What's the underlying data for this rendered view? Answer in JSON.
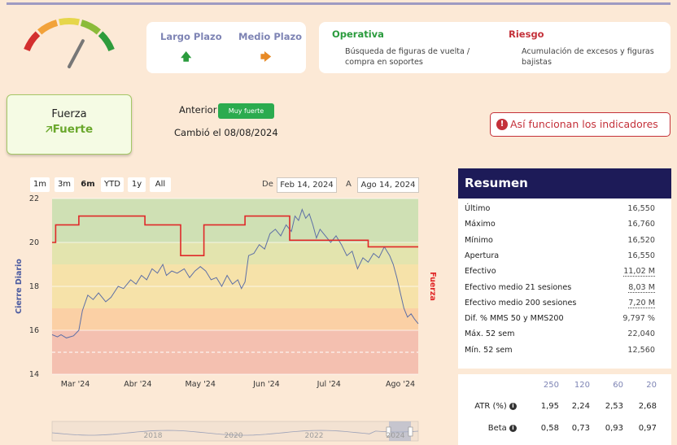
{
  "gauge": {
    "level": 0.7,
    "colors": [
      "#d32f2f",
      "#f2a23a",
      "#e6d64a",
      "#8bbb3a",
      "#2e9b3c"
    ]
  },
  "plazo": {
    "largo": {
      "label": "Largo Plazo",
      "arrow": "🡅",
      "color": "#2a9b3d"
    },
    "medio": {
      "label": "Medio Plazo",
      "arrow": "🡆",
      "color": "#e78a26"
    }
  },
  "operativa": {
    "title": "Operativa",
    "text_1": "Búsqueda de figuras de vuelta /",
    "text_2": "compra en soportes",
    "color": "#2a9b3d"
  },
  "riesgo": {
    "title": "Riesgo",
    "text_1": "Acumulación de excesos y figuras",
    "text_2": "bajistas",
    "color": "#c4313a"
  },
  "fuerza": {
    "title": "Fuerza",
    "value": "Fuerte",
    "arrow": "🡥"
  },
  "anterior": {
    "label": "Anterior",
    "badge": "Muy fuerte"
  },
  "cambio": "Cambió el 08/08/2024",
  "asi_button": {
    "label": "Así funcionan los indicadores",
    "icon": "!"
  },
  "ranges": [
    "1m",
    "3m",
    "6m",
    "YTD",
    "1y",
    "All"
  ],
  "active_range": "6m",
  "dates": {
    "de_label": "De",
    "de_value": "Feb 14, 2024",
    "a_label": "A",
    "a_value": "Ago 14, 2024"
  },
  "chart_data": {
    "type": "line",
    "ylabel": "Cierre Diario",
    "y2label": "Fuerza",
    "ylim": [
      14,
      22
    ],
    "yticks": [
      "22",
      "20",
      "18",
      "16",
      "14"
    ],
    "xticks": [
      "Mar '24",
      "Abr '24",
      "May '24",
      "Jun '24",
      "Jul '24",
      "Ago '24"
    ],
    "bands": [
      {
        "from": 20,
        "to": 22,
        "color": "#cfe0b4"
      },
      {
        "from": 19,
        "to": 20,
        "color": "#e3e4ae"
      },
      {
        "from": 17,
        "to": 19,
        "color": "#f6e2a9"
      },
      {
        "from": 16,
        "to": 17,
        "color": "#fbd0a5"
      },
      {
        "from": 14,
        "to": 16,
        "color": "#f4c0b0"
      }
    ],
    "series": [
      {
        "values": [
          [
            0,
            15.8
          ],
          [
            3,
            15.7
          ],
          [
            5,
            15.8
          ],
          [
            8,
            15.65
          ],
          [
            12,
            15.75
          ],
          [
            15,
            16.0
          ],
          [
            17,
            16.9
          ],
          [
            20,
            17.6
          ],
          [
            23,
            17.4
          ],
          [
            26,
            17.7
          ],
          [
            30,
            17.3
          ],
          [
            33,
            17.5
          ],
          [
            37,
            18.0
          ],
          [
            40,
            17.9
          ],
          [
            44,
            18.3
          ],
          [
            47,
            18.1
          ],
          [
            50,
            18.5
          ],
          [
            53,
            18.3
          ],
          [
            56,
            18.8
          ],
          [
            59,
            18.6
          ],
          [
            62,
            19.0
          ],
          [
            64,
            18.5
          ],
          [
            67,
            18.7
          ],
          [
            70,
            18.6
          ],
          [
            74,
            18.8
          ],
          [
            77,
            18.4
          ],
          [
            80,
            18.7
          ],
          [
            83,
            18.9
          ],
          [
            86,
            18.7
          ],
          [
            89,
            18.3
          ],
          [
            92,
            18.4
          ],
          [
            95,
            18.0
          ],
          [
            98,
            18.5
          ],
          [
            101,
            18.1
          ],
          [
            104,
            18.3
          ],
          [
            106,
            17.9
          ],
          [
            108,
            18.2
          ],
          [
            110,
            19.4
          ],
          [
            113,
            19.5
          ],
          [
            116,
            19.9
          ],
          [
            119,
            19.7
          ],
          [
            122,
            20.4
          ],
          [
            125,
            20.6
          ],
          [
            128,
            20.3
          ],
          [
            131,
            20.8
          ],
          [
            134,
            20.5
          ],
          [
            136,
            21.2
          ],
          [
            138,
            21.0
          ],
          [
            140,
            21.5
          ],
          [
            142,
            21.1
          ],
          [
            144,
            21.3
          ],
          [
            146,
            20.8
          ],
          [
            148,
            20.2
          ],
          [
            150,
            20.6
          ],
          [
            153,
            20.3
          ],
          [
            156,
            20.0
          ],
          [
            159,
            20.3
          ],
          [
            162,
            19.9
          ],
          [
            165,
            19.4
          ],
          [
            168,
            19.6
          ],
          [
            171,
            18.8
          ],
          [
            174,
            19.3
          ],
          [
            177,
            19.1
          ],
          [
            180,
            19.5
          ],
          [
            183,
            19.3
          ],
          [
            186,
            19.8
          ],
          [
            189,
            19.4
          ],
          [
            191,
            19.0
          ],
          [
            193,
            18.4
          ],
          [
            195,
            17.7
          ],
          [
            197,
            17.0
          ],
          [
            199,
            16.6
          ],
          [
            201,
            16.75
          ],
          [
            203,
            16.5
          ],
          [
            205,
            16.3
          ]
        ]
      },
      {
        "values": [
          [
            0,
            20.0
          ],
          [
            2,
            20.0
          ],
          [
            2,
            20.8
          ],
          [
            15,
            20.8
          ],
          [
            15,
            21.2
          ],
          [
            52,
            21.2
          ],
          [
            52,
            20.8
          ],
          [
            72,
            20.8
          ],
          [
            72,
            19.4
          ],
          [
            85,
            19.4
          ],
          [
            85,
            20.8
          ],
          [
            108,
            20.8
          ],
          [
            108,
            21.2
          ],
          [
            133,
            21.2
          ],
          [
            133,
            20.1
          ],
          [
            177,
            20.1
          ],
          [
            177,
            19.8
          ],
          [
            205,
            19.8
          ]
        ],
        "color": "#e02828"
      }
    ],
    "navigator_labels": [
      "2018",
      "2020",
      "2022",
      "2024"
    ]
  },
  "resumen": {
    "title": "Resumen",
    "rows": [
      {
        "label": "Último",
        "value": "16,550"
      },
      {
        "label": "Máximo",
        "value": "16,760"
      },
      {
        "label": "Mínimo",
        "value": "16,520"
      },
      {
        "label": "Apertura",
        "value": "16,550"
      },
      {
        "label": "Efectivo",
        "value": "11,02 M"
      },
      {
        "label": "Efectivo medio 21 sesiones",
        "value": "8,03 M"
      },
      {
        "label": "Efectivo medio 200 sesiones",
        "value": "7,20 M"
      },
      {
        "label": "Dif. % MMS 50 y MMS200",
        "value": "9,797 %"
      },
      {
        "label": "Máx. 52 sem",
        "value": "22,040"
      },
      {
        "label": "Mín. 52 sem",
        "value": "12,560"
      }
    ]
  },
  "atr_table": {
    "headers": [
      "250",
      "120",
      "60",
      "20"
    ],
    "rows": [
      {
        "label": "ATR (%)",
        "values": [
          "1,95",
          "2,24",
          "2,53",
          "2,68"
        ]
      },
      {
        "label": "Beta",
        "values": [
          "0,58",
          "0,73",
          "0,93",
          "0,97"
        ]
      }
    ]
  }
}
